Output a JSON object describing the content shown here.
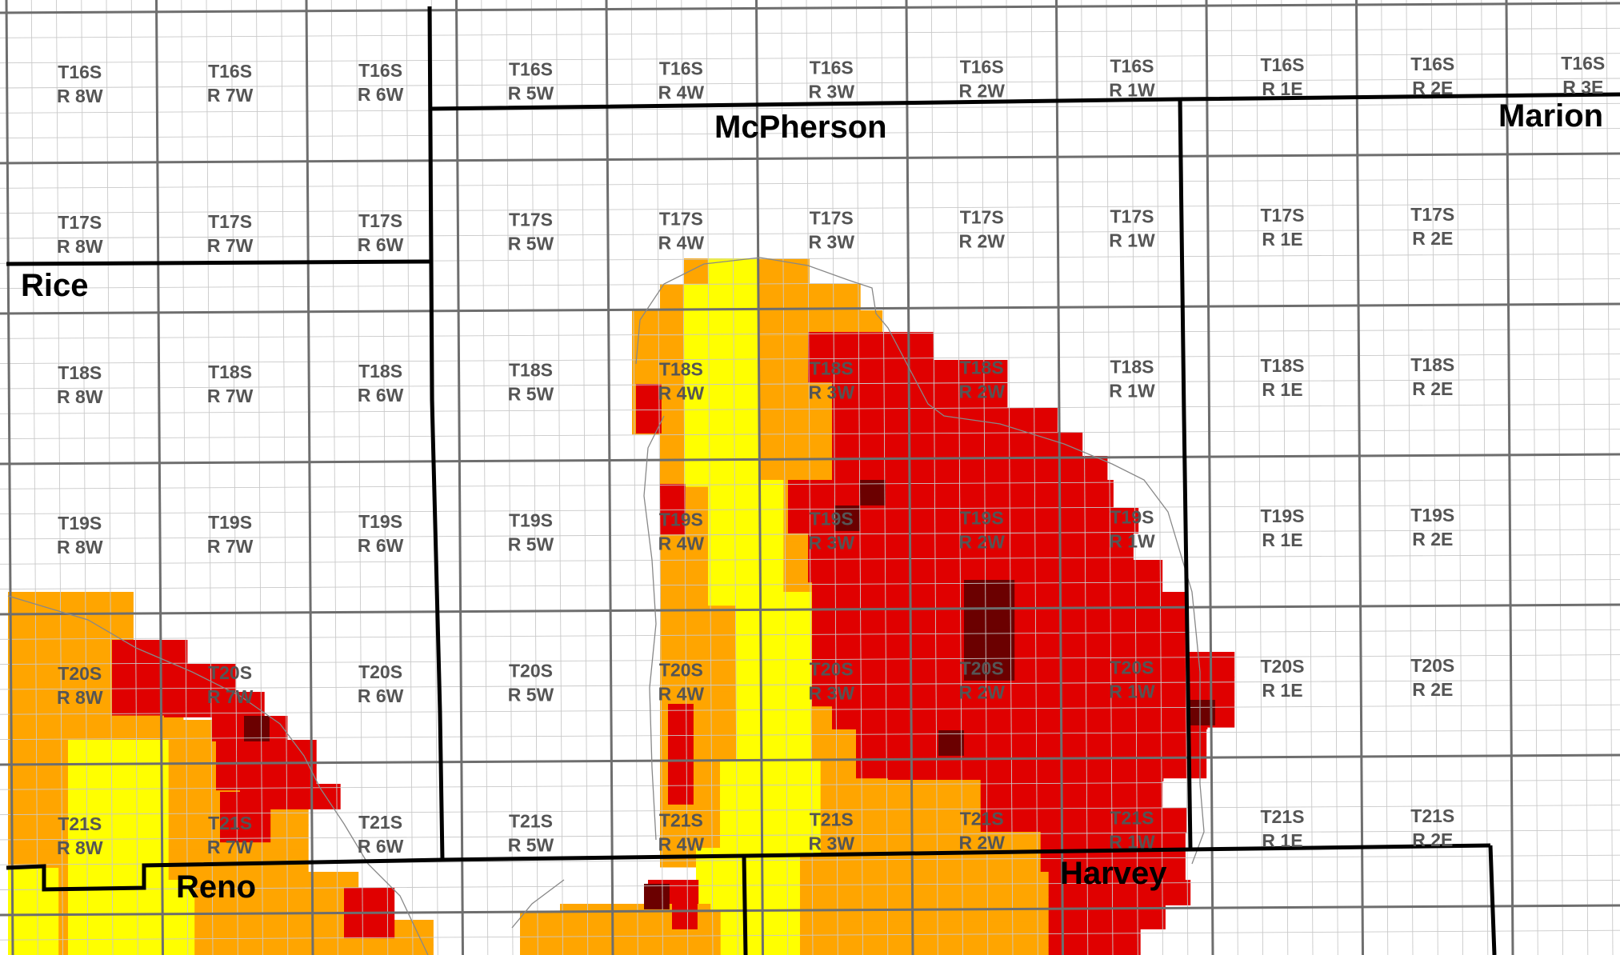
{
  "map": {
    "legend_colors": {
      "yellow": "#ffff00",
      "orange": "#ffa500",
      "red": "#e00000",
      "dark_red": "#6b0000"
    },
    "counties": [
      {
        "id": "mcpherson",
        "name": "McPherson"
      },
      {
        "id": "marion",
        "name": "Marion"
      },
      {
        "id": "rice",
        "name": "Rice"
      },
      {
        "id": "reno",
        "name": "Reno"
      },
      {
        "id": "harvey",
        "name": "Harvey"
      }
    ],
    "townships": [
      {
        "t": "T16S",
        "r": "R 8W"
      },
      {
        "t": "T16S",
        "r": "R 7W"
      },
      {
        "t": "T16S",
        "r": "R 6W"
      },
      {
        "t": "T16S",
        "r": "R 5W"
      },
      {
        "t": "T16S",
        "r": "R 4W"
      },
      {
        "t": "T16S",
        "r": "R 3W"
      },
      {
        "t": "T16S",
        "r": "R 2W"
      },
      {
        "t": "T16S",
        "r": "R 1W"
      },
      {
        "t": "T16S",
        "r": "R 1E"
      },
      {
        "t": "T16S",
        "r": "R 2E"
      },
      {
        "t": "T16S",
        "r": "R 3E"
      },
      {
        "t": "T17S",
        "r": "R 8W"
      },
      {
        "t": "T17S",
        "r": "R 7W"
      },
      {
        "t": "T17S",
        "r": "R 6W"
      },
      {
        "t": "T17S",
        "r": "R 5W"
      },
      {
        "t": "T17S",
        "r": "R 4W"
      },
      {
        "t": "T17S",
        "r": "R 3W"
      },
      {
        "t": "T17S",
        "r": "R 2W"
      },
      {
        "t": "T17S",
        "r": "R 1W"
      },
      {
        "t": "T17S",
        "r": "R 1E"
      },
      {
        "t": "T17S",
        "r": "R 2E"
      },
      {
        "t": "T18S",
        "r": "R 8W"
      },
      {
        "t": "T18S",
        "r": "R 7W"
      },
      {
        "t": "T18S",
        "r": "R 6W"
      },
      {
        "t": "T18S",
        "r": "R 5W"
      },
      {
        "t": "T18S",
        "r": "R 4W"
      },
      {
        "t": "T18S",
        "r": "R 3W"
      },
      {
        "t": "T18S",
        "r": "R 2W"
      },
      {
        "t": "T18S",
        "r": "R 1W"
      },
      {
        "t": "T18S",
        "r": "R 1E"
      },
      {
        "t": "T18S",
        "r": "R 2E"
      },
      {
        "t": "T19S",
        "r": "R 8W"
      },
      {
        "t": "T19S",
        "r": "R 7W"
      },
      {
        "t": "T19S",
        "r": "R 6W"
      },
      {
        "t": "T19S",
        "r": "R 5W"
      },
      {
        "t": "T19S",
        "r": "R 4W"
      },
      {
        "t": "T19S",
        "r": "R 3W"
      },
      {
        "t": "T19S",
        "r": "R 2W"
      },
      {
        "t": "T19S",
        "r": "R 1W"
      },
      {
        "t": "T19S",
        "r": "R 1E"
      },
      {
        "t": "T19S",
        "r": "R 2E"
      },
      {
        "t": "T20S",
        "r": "R 8W"
      },
      {
        "t": "T20S",
        "r": "R 7W"
      },
      {
        "t": "T20S",
        "r": "R 6W"
      },
      {
        "t": "T20S",
        "r": "R 5W"
      },
      {
        "t": "T20S",
        "r": "R 4W"
      },
      {
        "t": "T20S",
        "r": "R 3W"
      },
      {
        "t": "T20S",
        "r": "R 2W"
      },
      {
        "t": "T20S",
        "r": "R 1W"
      },
      {
        "t": "T20S",
        "r": "R 1E"
      },
      {
        "t": "T20S",
        "r": "R 2E"
      },
      {
        "t": "T21S",
        "r": "R 8W"
      },
      {
        "t": "T21S",
        "r": "R 7W"
      },
      {
        "t": "T21S",
        "r": "R 6W"
      },
      {
        "t": "T21S",
        "r": "R 5W"
      },
      {
        "t": "T21S",
        "r": "R 4W"
      },
      {
        "t": "T21S",
        "r": "R 3W"
      },
      {
        "t": "T21S",
        "r": "R 2W"
      },
      {
        "t": "T21S",
        "r": "R 1W"
      },
      {
        "t": "T21S",
        "r": "R 1E"
      },
      {
        "t": "T21S",
        "r": "R 2E"
      }
    ]
  }
}
